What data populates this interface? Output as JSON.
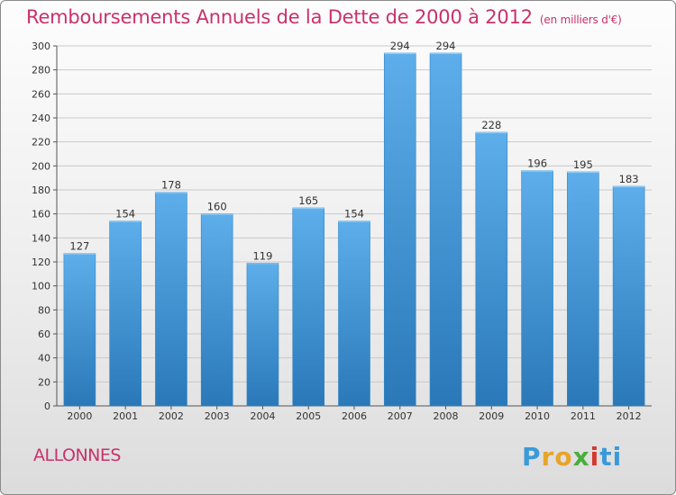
{
  "header": {
    "title": "Remboursements Annuels de la Dette de 2000 à 2012",
    "subtitle": "(en milliers d'€)"
  },
  "footer": {
    "commune": "ALLONNES",
    "logo_letters": [
      "P",
      "r",
      "o",
      "x",
      "i",
      "t",
      "i"
    ],
    "logo_colors": [
      "#3a9ad9",
      "#e8a42a",
      "#e8a42a",
      "#4aae3c",
      "#d2382f",
      "#3a9ad9",
      "#3a9ad9"
    ]
  },
  "chart_data": {
    "type": "bar",
    "categories": [
      "2000",
      "2001",
      "2002",
      "2003",
      "2004",
      "2005",
      "2006",
      "2007",
      "2008",
      "2009",
      "2010",
      "2011",
      "2012"
    ],
    "values": [
      127,
      154,
      178,
      160,
      119,
      165,
      154,
      294,
      294,
      228,
      196,
      195,
      183
    ],
    "data_labels": [
      "127",
      "154",
      "178",
      "160",
      "119",
      "165",
      "154",
      "294",
      "294",
      "228",
      "196",
      "195",
      "183"
    ],
    "ylim": [
      0,
      300
    ],
    "yticks": [
      "0",
      "20",
      "40",
      "60",
      "80",
      "100",
      "120",
      "140",
      "160",
      "180",
      "200",
      "220",
      "240",
      "260",
      "280",
      "300"
    ],
    "grid": true,
    "bar_color_top": "#5daeeb",
    "bar_color_bottom": "#2a78b8",
    "title_color": "#c8326b"
  }
}
